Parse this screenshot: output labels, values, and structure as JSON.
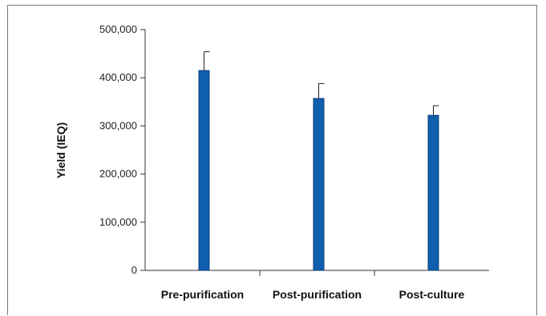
{
  "chart_data": {
    "type": "bar",
    "title": "",
    "xlabel": "",
    "ylabel": "Yield (IEQ)",
    "categories": [
      "Pre-purification",
      "Post-purification",
      "Post-culture"
    ],
    "values": [
      415000,
      357000,
      322000
    ],
    "error_upper": [
      454000,
      388000,
      342000
    ],
    "ylim": [
      0,
      500000
    ],
    "yticks": [
      0,
      100000,
      200000,
      300000,
      400000,
      500000
    ],
    "ytick_labels": [
      "0",
      "100,000",
      "200,000",
      "300,000",
      "400,000",
      "500,000"
    ],
    "grid": false,
    "legend": "none",
    "bar_color": "#0f5fae",
    "bar_border": "#0a3f7a"
  }
}
